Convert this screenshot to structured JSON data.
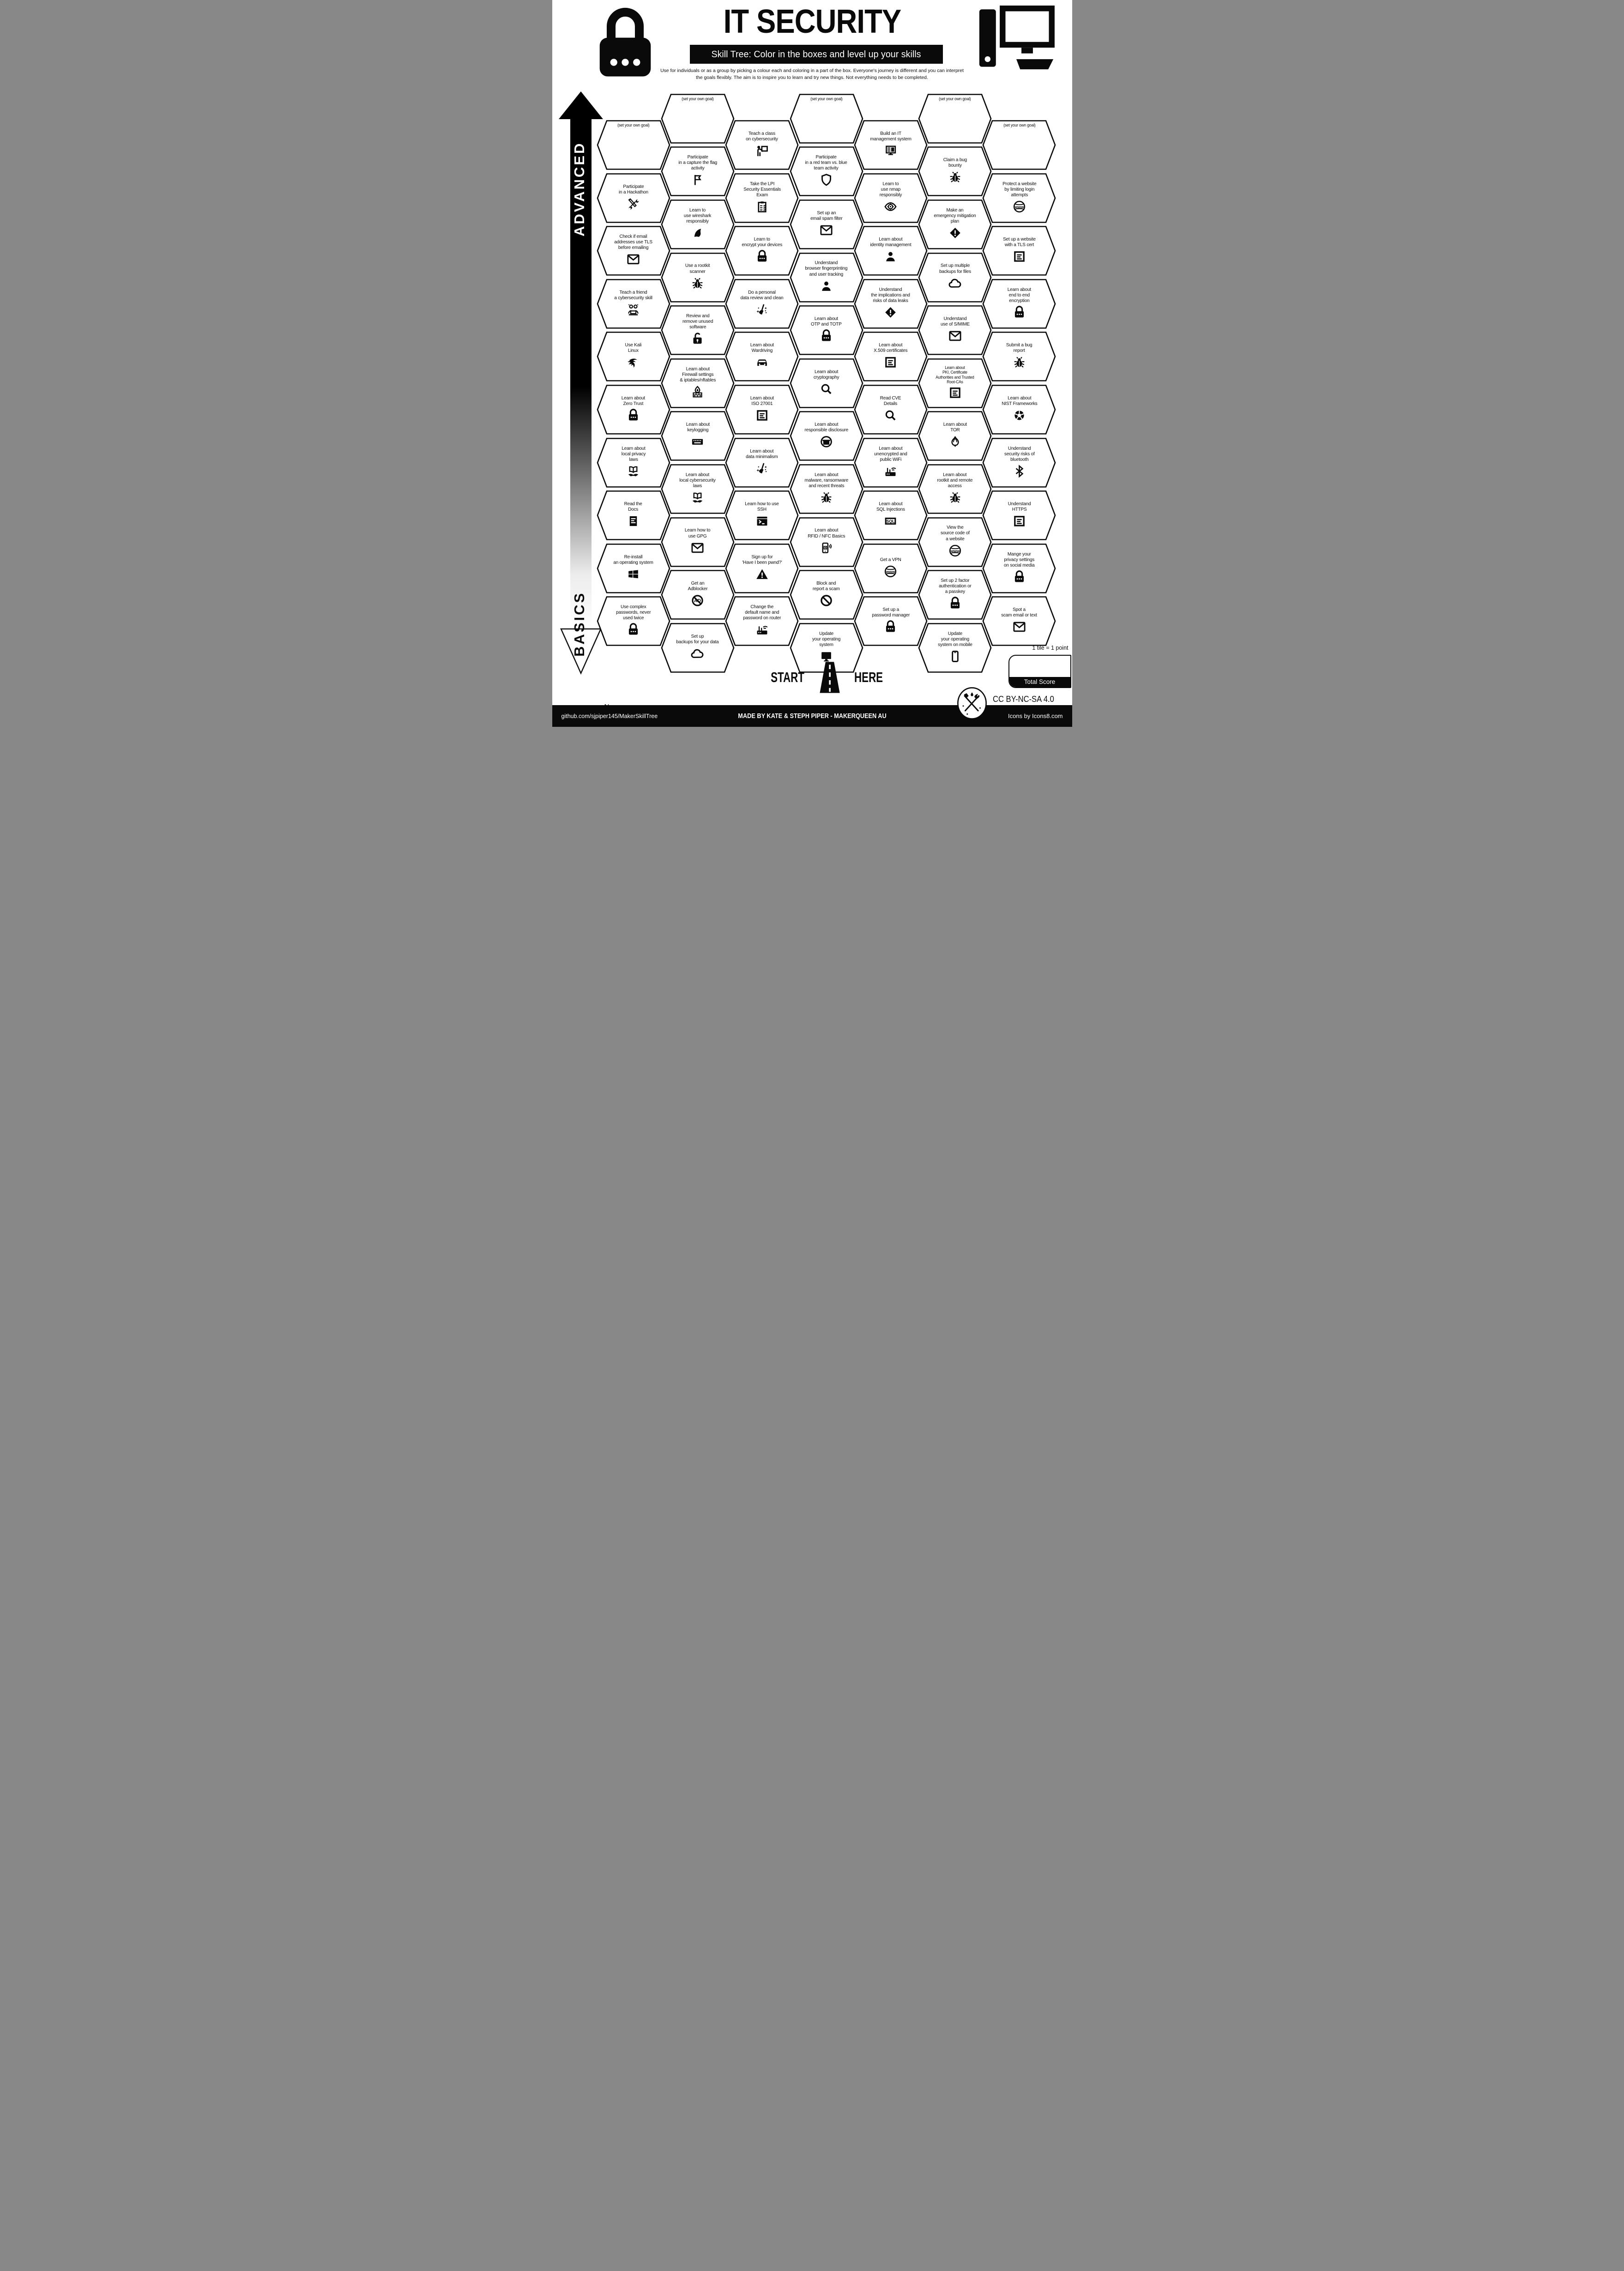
{
  "header": {
    "title": "IT SECURITY",
    "subtitle": "Skill Tree:  Color in the boxes and level up your skills",
    "description": "Use for individuals or as a group by picking a colour each and coloring in a part of the box.  Everyone's journey is different and you can interpret the goals flexibly.  The aim is to inspire you to learn and try new things. Not everything needs to be completed."
  },
  "axis": {
    "advanced_label": "ADVANCED",
    "basics_label": "BASICS"
  },
  "start": {
    "start_label": "START",
    "here_label": "HERE"
  },
  "name_label": "Name:",
  "score": {
    "tile_note": "1 tile = 1 point",
    "total_label": "Total Score"
  },
  "license_label": "CC BY-NC-SA 4.0",
  "footer": {
    "left": "github.com/sjpiper145/MakerSkillTree",
    "center": "MADE BY KATE & STEPH PIPER  -  MAKERQUEEN AU",
    "right": "Icons by Icons8.com"
  },
  "colors": {
    "ink": "#0a0a0a",
    "paper": "#ffffff"
  },
  "hexes": [
    {
      "col": 1,
      "row": 0,
      "label": "(set your own goal)",
      "icon": null,
      "goal": true
    },
    {
      "col": 1,
      "row": 1,
      "label": "Participate\nin a Hackathon",
      "icon": "tools"
    },
    {
      "col": 1,
      "row": 2,
      "label": "Check if email\naddresses use TLS\nbefore emailing",
      "icon": "email"
    },
    {
      "col": 1,
      "row": 3,
      "label": "Teach a friend\na cybersecurity skill",
      "icon": "people-laptop"
    },
    {
      "col": 1,
      "row": 4,
      "label": "Use Kali\nLinux",
      "icon": "kali"
    },
    {
      "col": 1,
      "row": 5,
      "label": "Learn about\nZero Trust",
      "icon": "lock"
    },
    {
      "col": 1,
      "row": 6,
      "label": "Learn about\nlocal privacy\nlaws",
      "icon": "law-book"
    },
    {
      "col": 1,
      "row": 7,
      "label": "Read the\nDocs",
      "icon": "document"
    },
    {
      "col": 1,
      "row": 8,
      "label": "Re-install\nan operating system",
      "icon": "windows"
    },
    {
      "col": 1,
      "row": 9,
      "label": "Use complex\npasswords, never\nused twice",
      "icon": "lock"
    },
    {
      "col": 2,
      "row": 0,
      "label": "(set your own goal)",
      "icon": null,
      "goal": true
    },
    {
      "col": 2,
      "row": 1,
      "label": "Participate\nin a capture the flag\nactivity",
      "icon": "flag"
    },
    {
      "col": 2,
      "row": 2,
      "label": "Learn to\nuse wireshark\nresponsibly",
      "icon": "shark-fin"
    },
    {
      "col": 2,
      "row": 3,
      "label": "Use a rootkit\nscanner",
      "icon": "bug"
    },
    {
      "col": 2,
      "row": 4,
      "label": "Review and\nremove unused\nsoftware",
      "icon": "lock-open"
    },
    {
      "col": 2,
      "row": 5,
      "label": "Learn about\nFirewall settings\n& iptables/nftables",
      "icon": "firewall"
    },
    {
      "col": 2,
      "row": 6,
      "label": "Learn about\nkeylogging",
      "icon": "keyboard"
    },
    {
      "col": 2,
      "row": 7,
      "label": "Learn about\nlocal cybersecurity\nlaws",
      "icon": "law-book"
    },
    {
      "col": 2,
      "row": 8,
      "label": "Learn how to\nuse GPG",
      "icon": "email"
    },
    {
      "col": 2,
      "row": 9,
      "label": "Get an\nAdblocker",
      "icon": "adblock"
    },
    {
      "col": 2,
      "row": 10,
      "label": "Set up\nbackups for your data",
      "icon": "cloud"
    },
    {
      "col": 3,
      "row": 0,
      "label": "Teach a class\non cybersecurity",
      "icon": "presenter"
    },
    {
      "col": 3,
      "row": 1,
      "label": "Take the LPI\nSecurity Essentials\nExam",
      "icon": "clipboard"
    },
    {
      "col": 3,
      "row": 2,
      "label": "Learn to\nencrypt your devices",
      "icon": "lock"
    },
    {
      "col": 3,
      "row": 3,
      "label": "Do a personal\ndata review and clean",
      "icon": "broom"
    },
    {
      "col": 3,
      "row": 4,
      "label": "Learn about\nWardriving",
      "icon": "car"
    },
    {
      "col": 3,
      "row": 5,
      "label": "Learn about\nISO 27001",
      "icon": "certificate"
    },
    {
      "col": 3,
      "row": 6,
      "label": "Learn about\ndata minimalism",
      "icon": "broom"
    },
    {
      "col": 3,
      "row": 7,
      "label": "Learn how to use\nSSH",
      "icon": "terminal"
    },
    {
      "col": 3,
      "row": 8,
      "label": "Sign up for\n'Have I been pwnd?'",
      "icon": "warning-triangle"
    },
    {
      "col": 3,
      "row": 9,
      "label": "Change the\ndefault name and\npassword on router",
      "icon": "router"
    },
    {
      "col": 4,
      "row": 0,
      "label": "(set your own goal)",
      "icon": null,
      "goal": true
    },
    {
      "col": 4,
      "row": 1,
      "label": "Participate\nin a red team vs. blue\nteam activity",
      "icon": "shield"
    },
    {
      "col": 4,
      "row": 2,
      "label": "Set up an\nemail spam filter",
      "icon": "email"
    },
    {
      "col": 4,
      "row": 3,
      "label": "Understand\nbrowser fingerprinting\nand user tracking",
      "icon": "person"
    },
    {
      "col": 4,
      "row": 4,
      "label": "Learn about\nOTP and TOTP",
      "icon": "lock"
    },
    {
      "col": 4,
      "row": 5,
      "label": "Learn about\ncryptography",
      "icon": "magnifier"
    },
    {
      "col": 4,
      "row": 6,
      "label": "Learn about\nresponsible disclosure",
      "icon": "incognito"
    },
    {
      "col": 4,
      "row": 7,
      "label": "Learn about\nmalware, ransomware\nand recent threats",
      "icon": "bug"
    },
    {
      "col": 4,
      "row": 8,
      "label": "Learn about\nRFID / NFC Basics",
      "icon": "nfc-phone"
    },
    {
      "col": 4,
      "row": 9,
      "label": "Block and\nreport a scam",
      "icon": "block"
    },
    {
      "col": 4,
      "row": 10,
      "label": "Update\nyour operating\nsystem",
      "icon": "monitor"
    },
    {
      "col": 5,
      "row": 0,
      "label": "Build an IT\nmanagement system",
      "icon": "computer"
    },
    {
      "col": 5,
      "row": 1,
      "label": "Learn to\nuse nmap\nresponsibly",
      "icon": "eye"
    },
    {
      "col": 5,
      "row": 2,
      "label": "Learn about\nidentity management",
      "icon": "person"
    },
    {
      "col": 5,
      "row": 3,
      "label": "Understand\nthe implications and\nrisks of data leaks",
      "icon": "warning-diamond"
    },
    {
      "col": 5,
      "row": 4,
      "label": "Learn about\nX.509 certificates",
      "icon": "certificate"
    },
    {
      "col": 5,
      "row": 5,
      "label": "Read CVE\nDetails",
      "icon": "magnifier"
    },
    {
      "col": 5,
      "row": 6,
      "label": "Learn about\nunencrypted and\npublic WiFi",
      "icon": "router"
    },
    {
      "col": 5,
      "row": 7,
      "label": "Learn about\nSQL Injections",
      "icon": "sql"
    },
    {
      "col": 5,
      "row": 8,
      "label": "Get a VPN",
      "icon": "www"
    },
    {
      "col": 5,
      "row": 9,
      "label": "Set up a\npassword manager",
      "icon": "lock"
    },
    {
      "col": 6,
      "row": 0,
      "label": "(set your own goal)",
      "icon": null,
      "goal": true
    },
    {
      "col": 6,
      "row": 1,
      "label": "Claim a bug\nbounty",
      "icon": "bug"
    },
    {
      "col": 6,
      "row": 2,
      "label": "Make an\nemergency mitigation\nplan",
      "icon": "warning-diamond"
    },
    {
      "col": 6,
      "row": 3,
      "label": "Set up multiple\nbackups for files",
      "icon": "cloud"
    },
    {
      "col": 6,
      "row": 4,
      "label": "Understand\nuse of S/MIME",
      "icon": "email"
    },
    {
      "col": 6,
      "row": 5,
      "label": "Learn about\nPKI, Certificate\nAuthorities and Trusted\nRoot-CAs",
      "icon": "certificate",
      "small": true
    },
    {
      "col": 6,
      "row": 6,
      "label": "Learn about\nTOR",
      "icon": "tor-onion"
    },
    {
      "col": 6,
      "row": 7,
      "label": "Learn about\nrootkit and remote\naccess",
      "icon": "bug"
    },
    {
      "col": 6,
      "row": 8,
      "label": "View the\nsource code of\na website",
      "icon": "www"
    },
    {
      "col": 6,
      "row": 9,
      "label": "Set up 2 factor\nauthentication or\na passkey",
      "icon": "lock"
    },
    {
      "col": 6,
      "row": 10,
      "label": "Update\nyour operating\nsystem on mobile",
      "icon": "phone"
    },
    {
      "col": 7,
      "row": 0,
      "label": "(set your own goal)",
      "icon": null,
      "goal": true
    },
    {
      "col": 7,
      "row": 1,
      "label": "Protect a website\nby limiting login\nattempts",
      "icon": "www"
    },
    {
      "col": 7,
      "row": 2,
      "label": "Set up a website\nwith a TLS cert",
      "icon": "certificate"
    },
    {
      "col": 7,
      "row": 3,
      "label": "Learn about\nend to end\nencryption",
      "icon": "lock"
    },
    {
      "col": 7,
      "row": 4,
      "label": "Submit a bug\nreport",
      "icon": "bug"
    },
    {
      "col": 7,
      "row": 5,
      "label": "Learn about\nNIST Frameworks",
      "icon": "nist-wheel"
    },
    {
      "col": 7,
      "row": 6,
      "label": "Understand\nsecurity risks of\nbluetooth",
      "icon": "bluetooth"
    },
    {
      "col": 7,
      "row": 7,
      "label": "Understand\nHTTPS",
      "icon": "certificate"
    },
    {
      "col": 7,
      "row": 8,
      "label": "Mange your\nprivacy settings\non social media",
      "icon": "lock"
    },
    {
      "col": 7,
      "row": 9,
      "label": "Spot a\nscam email or text",
      "icon": "email"
    }
  ]
}
